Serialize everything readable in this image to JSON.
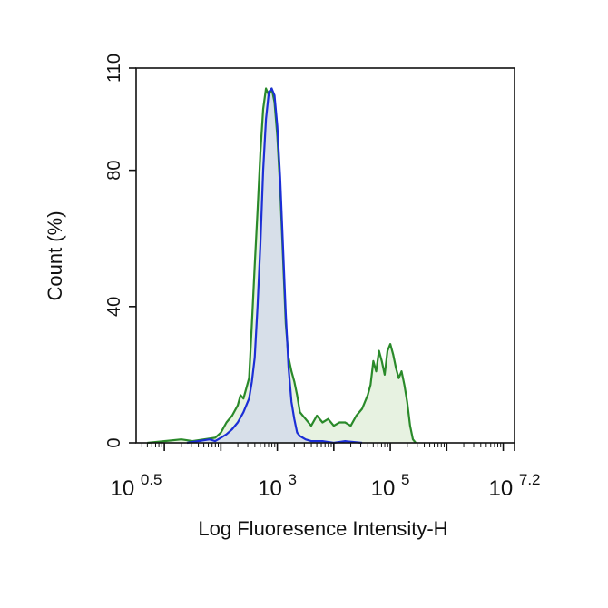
{
  "chart_data": {
    "type": "area",
    "title": "",
    "xlabel": "Log Fluoresence Intensity-H",
    "ylabel": "Count  (%)",
    "x_scale": "log10",
    "xlim_exp": [
      0.5,
      7.2
    ],
    "ylim": [
      0,
      110
    ],
    "x_major_ticks": [
      {
        "exp": 0.5,
        "base": "10",
        "sup": "0.5"
      },
      {
        "exp": 3,
        "base": "10",
        "sup": "3"
      },
      {
        "exp": 5,
        "base": "10",
        "sup": "5"
      },
      {
        "exp": 7.2,
        "base": "10",
        "sup": "7.2"
      }
    ],
    "y_ticks": [
      0,
      40,
      80,
      110
    ],
    "grid": false,
    "legend": "none",
    "series": [
      {
        "color": "#2a8a2a",
        "fill": "#e3f0dc",
        "points": [
          [
            0.7,
            0
          ],
          [
            1.0,
            0.5
          ],
          [
            1.3,
            1
          ],
          [
            1.5,
            0.5
          ],
          [
            1.7,
            1
          ],
          [
            1.9,
            1.5
          ],
          [
            2.0,
            3
          ],
          [
            2.1,
            6
          ],
          [
            2.2,
            8
          ],
          [
            2.3,
            11
          ],
          [
            2.35,
            14
          ],
          [
            2.4,
            13
          ],
          [
            2.5,
            19
          ],
          [
            2.55,
            35
          ],
          [
            2.6,
            52
          ],
          [
            2.65,
            68
          ],
          [
            2.7,
            85
          ],
          [
            2.75,
            98
          ],
          [
            2.8,
            104
          ],
          [
            2.85,
            102
          ],
          [
            2.9,
            104
          ],
          [
            2.95,
            100
          ],
          [
            3.0,
            90
          ],
          [
            3.05,
            75
          ],
          [
            3.1,
            55
          ],
          [
            3.15,
            35
          ],
          [
            3.2,
            25
          ],
          [
            3.25,
            21
          ],
          [
            3.3,
            18
          ],
          [
            3.35,
            14
          ],
          [
            3.4,
            9
          ],
          [
            3.5,
            7
          ],
          [
            3.6,
            5
          ],
          [
            3.7,
            8
          ],
          [
            3.8,
            6
          ],
          [
            3.9,
            7
          ],
          [
            4.0,
            5
          ],
          [
            4.1,
            6
          ],
          [
            4.2,
            6
          ],
          [
            4.3,
            5
          ],
          [
            4.4,
            8
          ],
          [
            4.5,
            10
          ],
          [
            4.6,
            14
          ],
          [
            4.65,
            17
          ],
          [
            4.7,
            24
          ],
          [
            4.75,
            21
          ],
          [
            4.8,
            27
          ],
          [
            4.85,
            24
          ],
          [
            4.9,
            20
          ],
          [
            4.95,
            27
          ],
          [
            5.0,
            29
          ],
          [
            5.05,
            26
          ],
          [
            5.1,
            22
          ],
          [
            5.15,
            19
          ],
          [
            5.2,
            21
          ],
          [
            5.25,
            17
          ],
          [
            5.3,
            12
          ],
          [
            5.35,
            5
          ],
          [
            5.4,
            1
          ],
          [
            5.45,
            0
          ]
        ]
      },
      {
        "color": "#1c2fd6",
        "fill": "#d4dcea",
        "points": [
          [
            1.4,
            0
          ],
          [
            1.6,
            0.5
          ],
          [
            1.8,
            1
          ],
          [
            1.9,
            0.5
          ],
          [
            2.0,
            1.5
          ],
          [
            2.1,
            2.5
          ],
          [
            2.2,
            4
          ],
          [
            2.3,
            6
          ],
          [
            2.4,
            9
          ],
          [
            2.5,
            13
          ],
          [
            2.55,
            18
          ],
          [
            2.6,
            25
          ],
          [
            2.65,
            40
          ],
          [
            2.7,
            58
          ],
          [
            2.75,
            80
          ],
          [
            2.8,
            95
          ],
          [
            2.85,
            103
          ],
          [
            2.9,
            104
          ],
          [
            2.95,
            102
          ],
          [
            3.0,
            93
          ],
          [
            3.05,
            78
          ],
          [
            3.1,
            58
          ],
          [
            3.15,
            38
          ],
          [
            3.2,
            22
          ],
          [
            3.25,
            12
          ],
          [
            3.3,
            7
          ],
          [
            3.35,
            3
          ],
          [
            3.4,
            2
          ],
          [
            3.5,
            1
          ],
          [
            3.6,
            0.5
          ],
          [
            3.8,
            0.5
          ],
          [
            4.0,
            0
          ],
          [
            4.2,
            0.5
          ],
          [
            4.5,
            0
          ]
        ]
      }
    ]
  }
}
